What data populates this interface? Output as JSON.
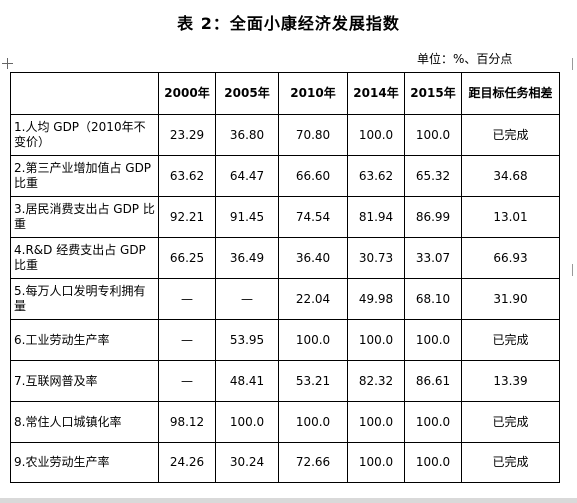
{
  "title": "表 2：全面小康经济发展指数",
  "unit": "单位：%、百分点",
  "headers": [
    "",
    "2000年",
    "2005年",
    "2010年",
    "2014年",
    "2015年",
    "距目标任务相差"
  ],
  "rows": [
    {
      "name": "1.人均 GDP（2010年不变价）",
      "values": [
        "23.29",
        "36.80",
        "70.80",
        "100.0",
        "100.0",
        "已完成"
      ]
    },
    {
      "name": "2.第三产业增加值占 GDP 比重",
      "values": [
        "63.62",
        "64.47",
        "66.60",
        "63.62",
        "65.32",
        "34.68"
      ]
    },
    {
      "name": "3.居民消费支出占 GDP 比重",
      "values": [
        "92.21",
        "91.45",
        "74.54",
        "81.94",
        "86.99",
        "13.01"
      ]
    },
    {
      "name": "4.R&D 经费支出占 GDP 比重",
      "values": [
        "66.25",
        "36.49",
        "36.40",
        "30.73",
        "33.07",
        "66.93"
      ]
    },
    {
      "name": "5.每万人口发明专利拥有量",
      "values": [
        "—",
        "—",
        "22.04",
        "49.98",
        "68.10",
        "31.90"
      ]
    },
    {
      "name": "6.工业劳动生产率",
      "values": [
        "—",
        "53.95",
        "100.0",
        "100.0",
        "100.0",
        "已完成"
      ]
    },
    {
      "name": "7.互联网普及率",
      "values": [
        "—",
        "48.41",
        "53.21",
        "82.32",
        "86.61",
        "13.39"
      ]
    },
    {
      "name": "8.常住人口城镇化率",
      "values": [
        "98.12",
        "100.0",
        "100.0",
        "100.0",
        "100.0",
        "已完成"
      ]
    },
    {
      "name": "9.农业劳动生产率",
      "values": [
        "24.26",
        "30.24",
        "72.66",
        "100.0",
        "100.0",
        "已完成"
      ]
    }
  ]
}
